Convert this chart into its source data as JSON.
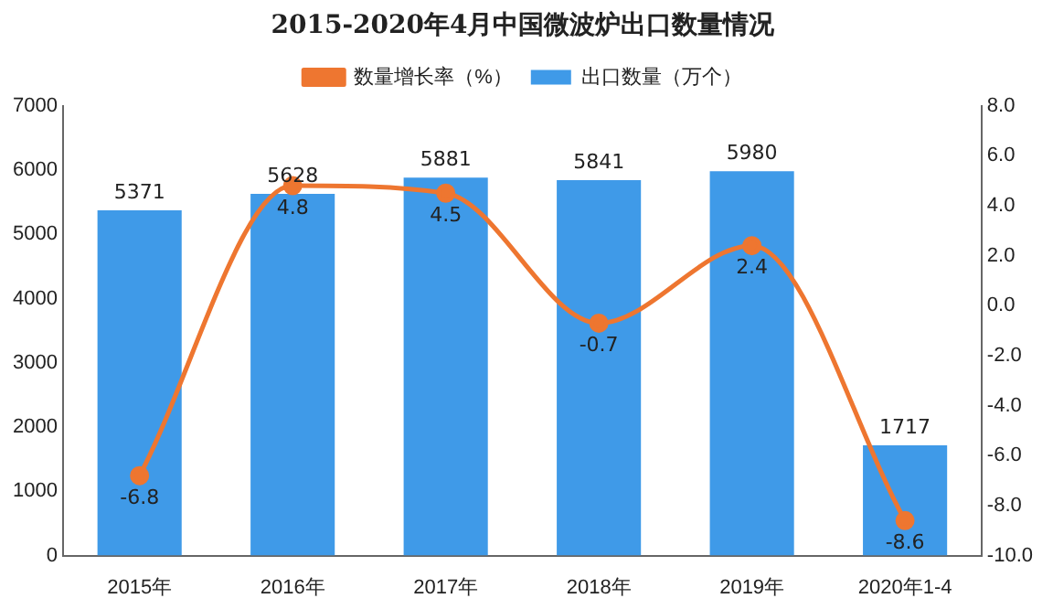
{
  "chart_data": {
    "type": "bar",
    "title": "2015-2020年4月中国微波炉出口数量情况",
    "categories": [
      "2015年",
      "2016年",
      "2017年",
      "2018年",
      "2019年",
      "2020年1-4"
    ],
    "series": [
      {
        "name": "出口数量（万个）",
        "color": "#3f9ae8",
        "values": [
          5371,
          5628,
          5881,
          5841,
          5980,
          1717
        ]
      },
      {
        "name": "数量增长率（%）",
        "type": "line",
        "axis": "y2",
        "color": "#ee7630",
        "marker": "circle",
        "values": [
          -6.8,
          4.8,
          4.5,
          -0.7,
          2.4,
          -8.6
        ]
      }
    ],
    "ylim": [
      0,
      7000
    ],
    "yticks": [
      0,
      1000,
      2000,
      3000,
      4000,
      5000,
      6000,
      7000
    ],
    "y2lim": [
      -10,
      8
    ],
    "y2ticks": [
      {
        "value": 8,
        "label": "8.0"
      },
      {
        "value": 6,
        "label": "6.0"
      },
      {
        "value": 4,
        "label": "4.0"
      },
      {
        "value": 2,
        "label": "2.0"
      },
      {
        "value": 0,
        "label": "0.0"
      },
      {
        "value": -2,
        "label": "-2.0"
      },
      {
        "value": -4,
        "label": "-4.0"
      },
      {
        "value": -6,
        "label": "-6.0"
      },
      {
        "value": -8,
        "label": "-8.0"
      },
      {
        "value": -10,
        "label": "-10.0"
      }
    ],
    "grid": false,
    "legend": "top",
    "data_labels": true
  }
}
